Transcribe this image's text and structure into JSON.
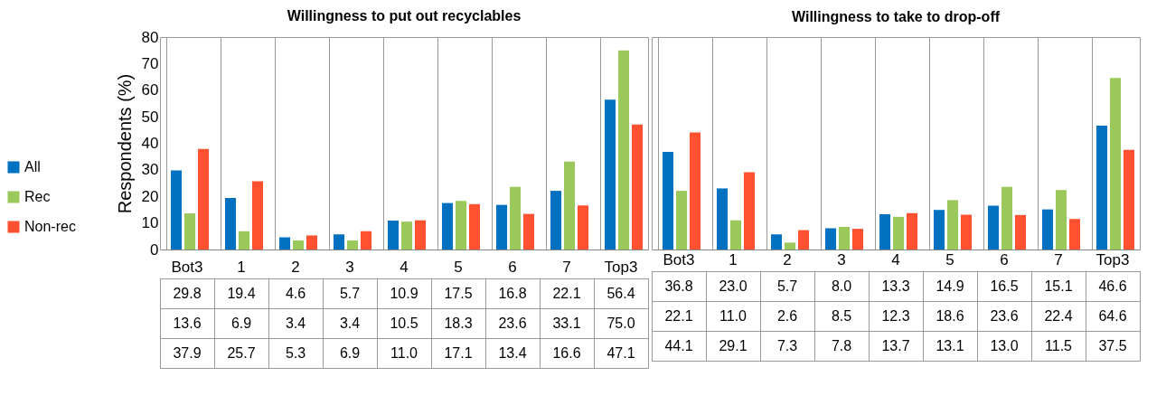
{
  "chart_data": [
    {
      "type": "bar",
      "title": "Willingness to put out recyclables",
      "ylabel": "Respondents (%)",
      "categories": [
        "Bot3",
        "1",
        "2",
        "3",
        "4",
        "5",
        "6",
        "7",
        "Top3"
      ],
      "ylim": [
        0,
        80
      ],
      "yticks": [
        0,
        10,
        20,
        30,
        40,
        50,
        60,
        70,
        80
      ],
      "grid": false,
      "legend": "left",
      "series": [
        {
          "name": "All",
          "color": "#0070c0",
          "values": [
            29.8,
            19.4,
            4.6,
            5.7,
            10.9,
            17.5,
            16.8,
            22.1,
            56.4
          ],
          "value_labels": [
            "29.8",
            "19.4",
            "4.6",
            "5.7",
            "10.9",
            "17.5",
            "16.8",
            "22.1",
            "56.4"
          ]
        },
        {
          "name": "Rec",
          "color": "#9bc85a",
          "values": [
            13.6,
            6.9,
            3.4,
            3.4,
            10.5,
            18.3,
            23.6,
            33.1,
            75.0
          ],
          "value_labels": [
            "13.6",
            "6.9",
            "3.4",
            "3.4",
            "10.5",
            "18.3",
            "23.6",
            "33.1",
            "75.0"
          ]
        },
        {
          "name": "Non-rec",
          "color": "#ff5030",
          "values": [
            37.9,
            25.7,
            5.3,
            6.9,
            11.0,
            17.1,
            13.4,
            16.6,
            47.1
          ],
          "value_labels": [
            "37.9",
            "25.7",
            "5.3",
            "6.9",
            "11.0",
            "17.1",
            "13.4",
            "16.6",
            "47.1"
          ]
        }
      ]
    },
    {
      "type": "bar",
      "title": "Willingness to take to drop-off",
      "categories": [
        "Bot3",
        "1",
        "2",
        "3",
        "4",
        "5",
        "6",
        "7",
        "Top3"
      ],
      "ylim": [
        0,
        80
      ],
      "yticks": [
        0,
        10,
        20,
        30,
        40,
        50,
        60,
        70,
        80
      ],
      "tick_labels": "x",
      "grid": false,
      "series": [
        {
          "color": "#0070c0",
          "values": [
            36.8,
            23.0,
            5.7,
            8.0,
            13.3,
            14.9,
            16.5,
            15.1,
            46.6
          ],
          "value_labels": [
            "36.8",
            "23.0",
            "5.7",
            "8.0",
            "13.3",
            "14.9",
            "16.5",
            "15.1",
            "46.6"
          ]
        },
        {
          "color": "#9bc85a",
          "values": [
            22.1,
            11.0,
            2.6,
            8.5,
            12.3,
            18.6,
            23.6,
            22.4,
            64.6
          ],
          "value_labels": [
            "22.1",
            "11.0",
            "2.6",
            "8.5",
            "12.3",
            "18.6",
            "23.6",
            "22.4",
            "64.6"
          ]
        },
        {
          "color": "#ff5030",
          "values": [
            44.1,
            29.1,
            7.3,
            7.8,
            13.7,
            13.1,
            13.0,
            11.5,
            37.5
          ],
          "value_labels": [
            "44.1",
            "29.1",
            "7.3",
            "7.8",
            "13.7",
            "13.1",
            "13.0",
            "11.5",
            "37.5"
          ]
        }
      ]
    }
  ]
}
